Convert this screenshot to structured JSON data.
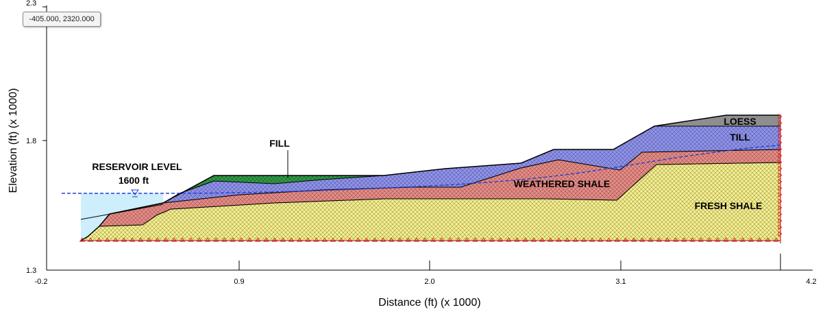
{
  "coordinate_readout": "-405.000, 2320.000",
  "axes": {
    "x_title": "Distance (ft) (x  1000)",
    "y_title": "Elevation (ft) (x  1000)",
    "x_ticks": [
      "-0.2",
      "0.9",
      "2.0",
      "3.1",
      "4.2"
    ],
    "y_ticks": [
      "1.3",
      "1.8",
      "2.3"
    ],
    "xlim": [
      -200,
      4200
    ],
    "ylim": [
      1300,
      2300
    ]
  },
  "reservoir": {
    "label_line1": "RESERVOIR LEVEL",
    "label_line2": "1600 ft",
    "elevation": 1600
  },
  "annotations": {
    "fill_label": "FILL"
  },
  "layers": [
    {
      "name": "FRESH SHALE",
      "color": "#f5ef8c",
      "label": "FRESH SHALE"
    },
    {
      "name": "WEATHERED SHALE",
      "color": "#e98b86",
      "label": "WEATHERED SHALE"
    },
    {
      "name": "TILL",
      "color": "#8f93ee",
      "label": "TILL"
    },
    {
      "name": "LOESS",
      "color": "#8e8e8e",
      "label": "LOESS"
    },
    {
      "name": "FILL",
      "color": "#2f9a45",
      "label": ""
    }
  ],
  "colors": {
    "water": "#cdeefa",
    "piezometric_line": "#1f3fd6",
    "boundary_marks": "#d42020"
  },
  "icons": {
    "water_table_marker": "water-table-triangle-icon"
  }
}
